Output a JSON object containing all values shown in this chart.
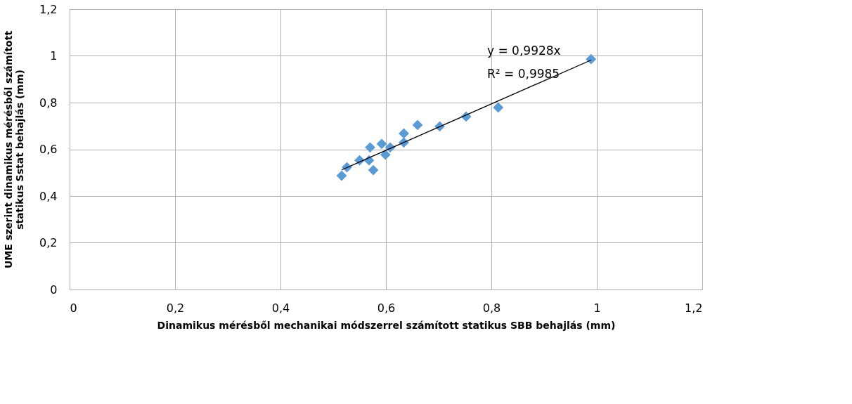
{
  "chart_data": {
    "type": "scatter",
    "xlabel": "Dinamikus mérésből mechanikai módszerrel számított statikus SBB behajlás (mm)",
    "ylabel": "UME szerint dinamikus mérésből számított\nstatikus Sstat behajlás (mm)",
    "xlim": [
      0,
      1.2
    ],
    "ylim": [
      0,
      1.2
    ],
    "xticks": [
      0,
      {
        "value": 0.2,
        "label": "0,2"
      },
      {
        "value": 0.4,
        "label": "0,4"
      },
      {
        "value": 0.6,
        "label": "0,6"
      },
      {
        "value": 0.8,
        "label": "0,8"
      },
      1,
      {
        "value": 1.2,
        "label": "1,2"
      }
    ],
    "yticks": [
      0,
      {
        "value": 0.2,
        "label": "0,2"
      },
      {
        "value": 0.4,
        "label": "0,4"
      },
      {
        "value": 0.6,
        "label": "0,6"
      },
      {
        "value": 0.8,
        "label": "0,8"
      },
      1,
      {
        "value": 1.2,
        "label": "1,2"
      }
    ],
    "grid": true,
    "series": [
      {
        "marker": "diamond",
        "color": "#5b9bd5",
        "x": [
          0.516,
          0.526,
          0.55,
          0.576,
          0.568,
          0.57,
          0.592,
          0.599,
          0.608,
          0.634,
          0.634,
          0.66,
          0.702,
          0.752,
          0.813,
          0.989
        ],
        "values": [
          0.487,
          0.523,
          0.553,
          0.511,
          0.553,
          0.608,
          0.623,
          0.577,
          0.608,
          0.629,
          0.668,
          0.704,
          0.698,
          0.74,
          0.779,
          0.986
        ]
      },
      {
        "type": "line",
        "marker": "none",
        "color": "#000000",
        "x": [
          0.516,
          0.989
        ],
        "values": [
          0.512,
          0.982
        ]
      }
    ],
    "annotations": [
      "y = 0,9928x",
      "R² = 0,9985"
    ]
  }
}
